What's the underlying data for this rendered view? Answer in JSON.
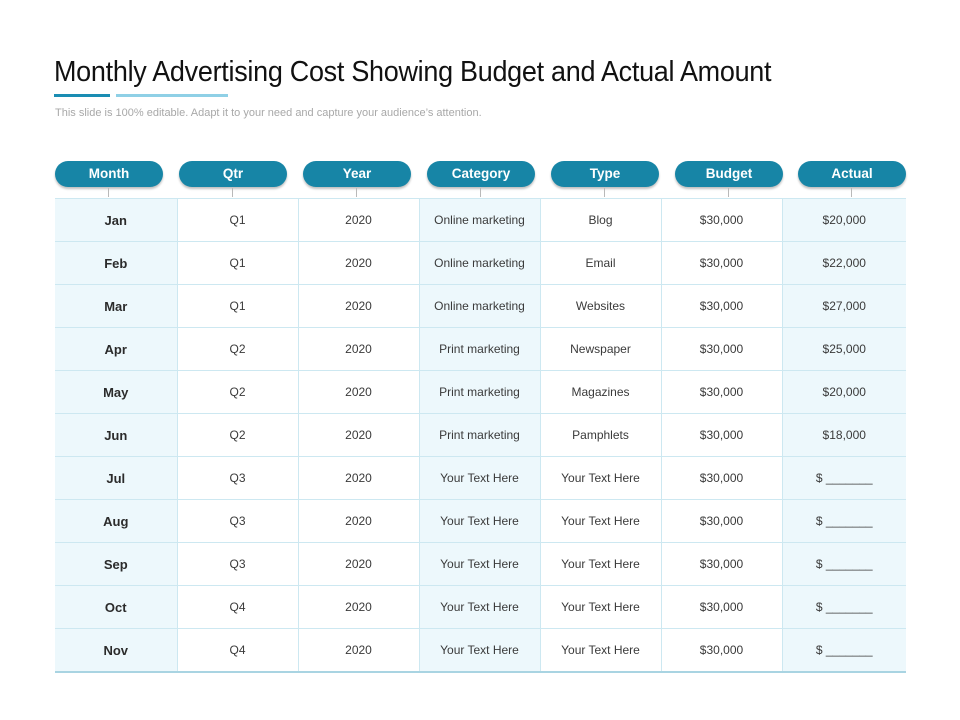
{
  "slide": {
    "title": "Monthly Advertising Cost Showing Budget and Actual Amount",
    "subtitle": "This slide is 100% editable. Adapt it to your need and capture your audience’s attention.",
    "colors": {
      "header_pill": "#1785a6",
      "accent_dark": "#1a8db3",
      "accent_light": "#8fd0e6",
      "cell_tint": "#edf8fc"
    }
  },
  "table": {
    "headers": [
      "Month",
      "Qtr",
      "Year",
      "Category",
      "Type",
      "Budget",
      "Actual"
    ],
    "rows": [
      [
        "Jan",
        "Q1",
        "2020",
        "Online marketing",
        "Blog",
        "$30,000",
        "$20,000"
      ],
      [
        "Feb",
        "Q1",
        "2020",
        "Online marketing",
        "Email",
        "$30,000",
        "$22,000"
      ],
      [
        "Mar",
        "Q1",
        "2020",
        "Online marketing",
        "Websites",
        "$30,000",
        "$27,000"
      ],
      [
        "Apr",
        "Q2",
        "2020",
        "Print marketing",
        "Newspaper",
        "$30,000",
        "$25,000"
      ],
      [
        "May",
        "Q2",
        "2020",
        "Print marketing",
        "Magazines",
        "$30,000",
        "$20,000"
      ],
      [
        "Jun",
        "Q2",
        "2020",
        "Print marketing",
        "Pamphlets",
        "$30,000",
        "$18,000"
      ],
      [
        "Jul",
        "Q3",
        "2020",
        "Your Text Here",
        "Your Text Here",
        "$30,000",
        "$ _______"
      ],
      [
        "Aug",
        "Q3",
        "2020",
        "Your Text Here",
        "Your Text Here",
        "$30,000",
        "$ _______"
      ],
      [
        "Sep",
        "Q3",
        "2020",
        "Your Text Here",
        "Your Text Here",
        "$30,000",
        "$ _______"
      ],
      [
        "Oct",
        "Q4",
        "2020",
        "Your Text Here",
        "Your Text Here",
        "$30,000",
        "$ _______"
      ],
      [
        "Nov",
        "Q4",
        "2020",
        "Your Text Here",
        "Your Text Here",
        "$30,000",
        "$ _______"
      ]
    ]
  }
}
